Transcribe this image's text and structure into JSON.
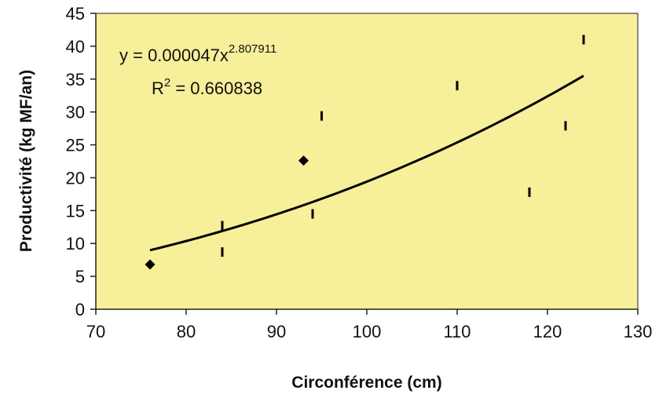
{
  "chart_data": {
    "type": "scatter",
    "xlabel": "Circonférence (cm)",
    "ylabel": "Productivité (kg MF/an)",
    "xlim": [
      70,
      130
    ],
    "ylim": [
      0,
      45
    ],
    "x_ticks": [
      "70",
      "80",
      "90",
      "100",
      "110",
      "120",
      "130"
    ],
    "y_ticks": [
      "0",
      "5",
      "10",
      "15",
      "20",
      "25",
      "30",
      "35",
      "40",
      "45"
    ],
    "grid": false,
    "legend": "none",
    "plot_background": "#f7ef99",
    "page_background": "#ffffff",
    "series": [
      {
        "marker": "diamond",
        "color": "#000000",
        "points": [
          {
            "x": 76,
            "y": 6.8
          },
          {
            "x": 93,
            "y": 22.6
          }
        ]
      },
      {
        "marker": "vertical-dash",
        "color": "#000000",
        "points": [
          {
            "x": 84,
            "y": 12.7
          },
          {
            "x": 84,
            "y": 8.7
          },
          {
            "x": 94,
            "y": 14.5
          },
          {
            "x": 95,
            "y": 29.4
          },
          {
            "x": 110,
            "y": 34.0
          },
          {
            "x": 118,
            "y": 17.8
          },
          {
            "x": 122,
            "y": 27.9
          },
          {
            "x": 124,
            "y": 41.0
          }
        ]
      }
    ],
    "trendline": {
      "type": "power",
      "coefficient": 4.7e-05,
      "exponent": 2.807911,
      "x_range": [
        76,
        124
      ],
      "color": "#000000"
    },
    "annotations": {
      "equation_prefix": "y = 0.000047x",
      "equation_exponent": "2.807911",
      "r2_prefix": "R",
      "r2_exponent": "2",
      "r2_value": " = 0.660838"
    }
  }
}
